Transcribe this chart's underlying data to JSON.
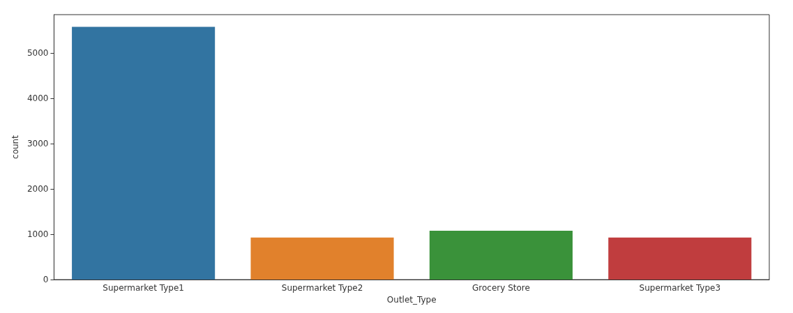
{
  "chart_data": {
    "type": "bar",
    "xlabel": "Outlet_Type",
    "ylabel": "count",
    "categories": [
      "Supermarket Type1",
      "Supermarket Type2",
      "Grocery Store",
      "Supermarket Type3"
    ],
    "values": [
      5580,
      930,
      1080,
      930
    ],
    "colors": [
      "#3274a1",
      "#e1812c",
      "#3a923a",
      "#c03d3e"
    ],
    "ylim": [
      0,
      5850
    ],
    "yticks": [
      0,
      1000,
      2000,
      3000,
      4000,
      5000
    ],
    "grid": false
  }
}
